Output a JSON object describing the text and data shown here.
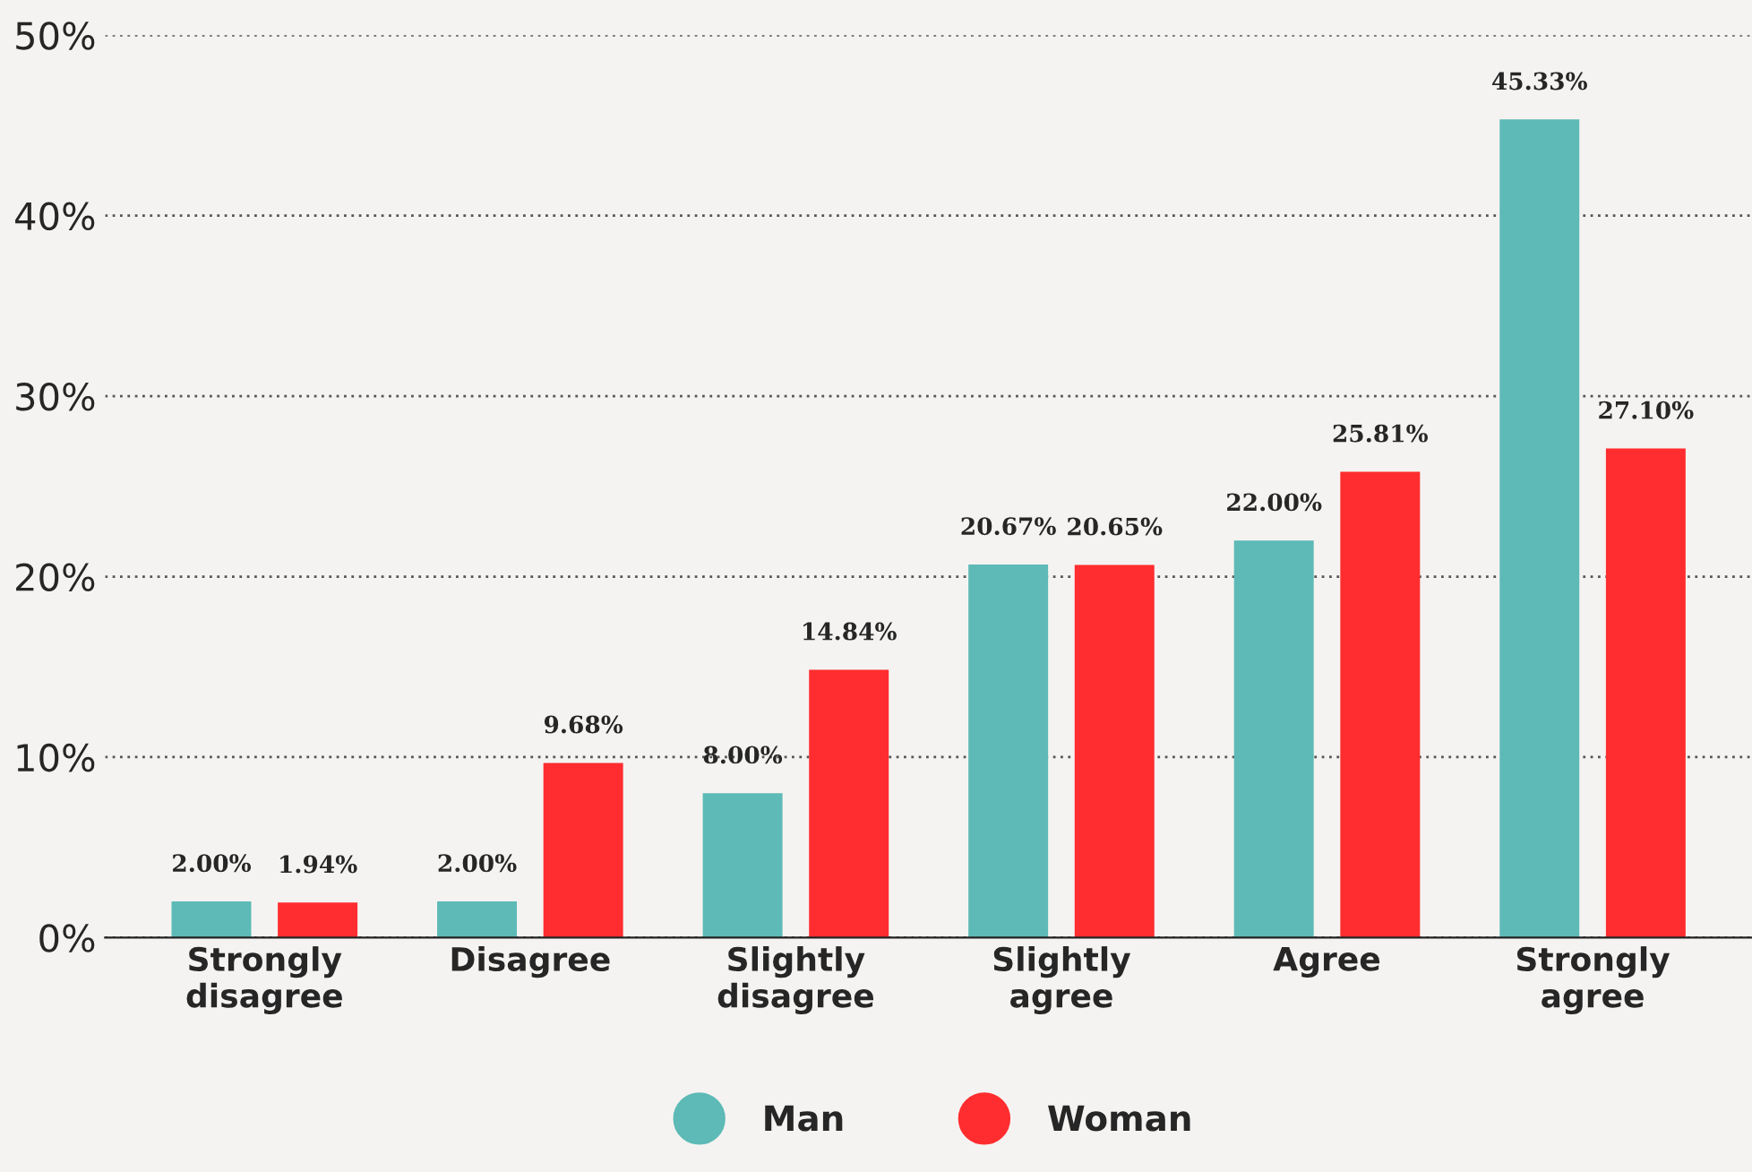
{
  "chart_data": {
    "type": "bar",
    "categories": [
      "Strongly\ndisagree",
      "Disagree",
      "Slightly\ndisagree",
      "Slightly\nagree",
      "Agree",
      "Strongly\nagree"
    ],
    "series": [
      {
        "name": "Man",
        "color": "#5dbab6",
        "values": [
          2.0,
          2.0,
          8.0,
          20.67,
          22.0,
          45.33
        ],
        "value_labels": [
          "2.00%",
          "2.00%",
          "8.00%",
          "20.67%",
          "22.00%",
          "45.33%"
        ]
      },
      {
        "name": "Woman",
        "color": "#ff2d2f",
        "values": [
          1.94,
          9.68,
          14.84,
          20.65,
          25.81,
          27.1
        ],
        "value_labels": [
          "1.94%",
          "9.68%",
          "14.84%",
          "20.65%",
          "25.81%",
          "27.10%"
        ]
      }
    ],
    "ylim": [
      0,
      50
    ],
    "yticks": [
      {
        "value": 0,
        "label": "0%"
      },
      {
        "value": 10,
        "label": "10%"
      },
      {
        "value": 20,
        "label": "20%"
      },
      {
        "value": 30,
        "label": "30%"
      },
      {
        "value": 40,
        "label": "40%"
      },
      {
        "value": 50,
        "label": "50%"
      }
    ],
    "grid": "y",
    "legend": "bottom"
  }
}
